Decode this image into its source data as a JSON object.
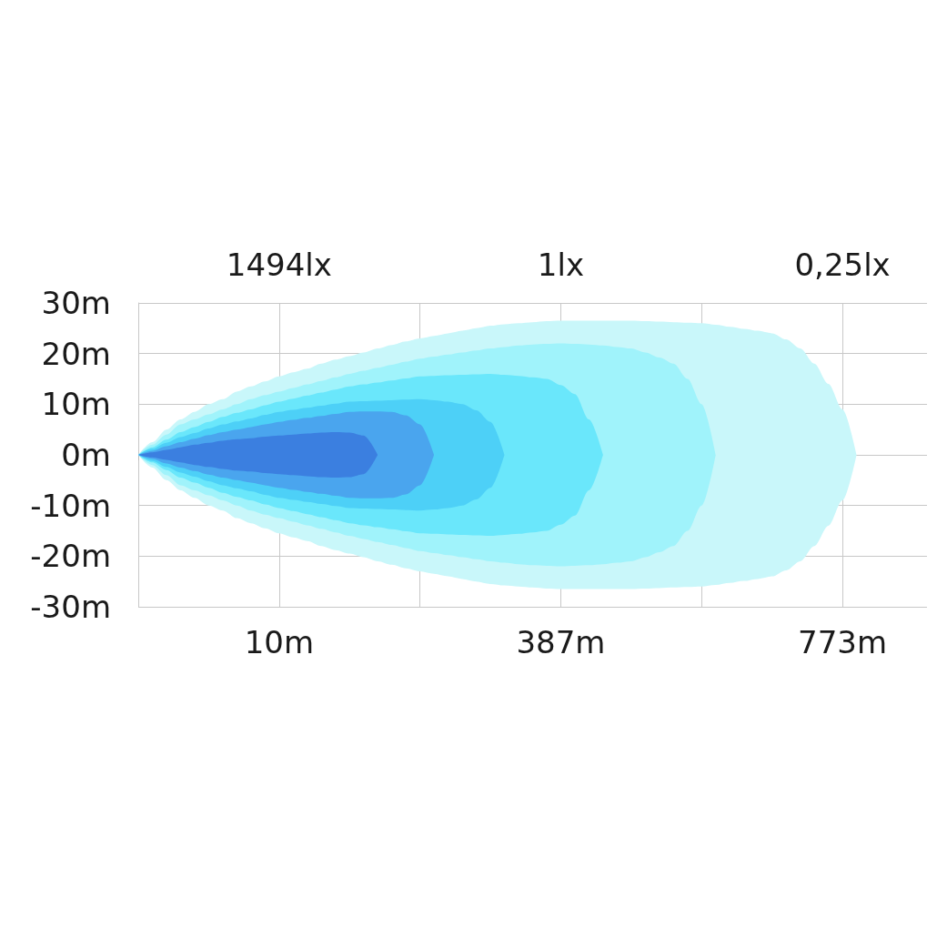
{
  "chart_data": {
    "type": "area",
    "grid": true,
    "categories": [
      null,
      null,
      null,
      null,
      null,
      null,
      null,
      null,
      null,
      null,
      "10m",
      null,
      null,
      null,
      null,
      null,
      null,
      null,
      null,
      null,
      null,
      null,
      null,
      null,
      null,
      null,
      null,
      null,
      null,
      null,
      "387m",
      null,
      null,
      null,
      null,
      null,
      null,
      null,
      null,
      null,
      null,
      null,
      null,
      null,
      null,
      null,
      null,
      null,
      null,
      null,
      "773m",
      null,
      null,
      null,
      null,
      null,
      null
    ],
    "ylim": [
      -30,
      30
    ],
    "yticks": [
      {
        "value": 30,
        "label": "30m"
      },
      {
        "value": 20,
        "label": "20m"
      },
      {
        "value": 10,
        "label": "10m"
      },
      {
        "value": 0,
        "label": "0m"
      },
      {
        "value": -10,
        "label": "-10m"
      },
      {
        "value": -20,
        "label": "-20m"
      },
      {
        "value": -30,
        "label": "-30m"
      }
    ],
    "annotations": [
      "1494lx",
      "1lx",
      "0,25lx"
    ],
    "series": [
      {
        "color": "#c9f7fa",
        "values": [
          0,
          2.5,
          5,
          7,
          8.5,
          10,
          11,
          12.5,
          13.5,
          14.5,
          15.5,
          16.3,
          17,
          18,
          18.8,
          19.5,
          20.2,
          21,
          21.7,
          22.4,
          23,
          23.5,
          24,
          24.5,
          25,
          25.5,
          25.8,
          26,
          26.2,
          26.4,
          26.5,
          26.5,
          26.5,
          26.5,
          26.5,
          26.5,
          26.4,
          26.3,
          26.2,
          26.1,
          26,
          25.7,
          25.3,
          24.9,
          24.5,
          24,
          22.8,
          21,
          18,
          14,
          9,
          0,
          null,
          null,
          null,
          null,
          null
        ]
      },
      {
        "color": "#c9f7fa",
        "values": [
          0,
          -2.5,
          -5,
          -7,
          -8.5,
          -10,
          -11,
          -12.5,
          -13.5,
          -14.5,
          -15.5,
          -16.3,
          -17,
          -18,
          -18.8,
          -19.5,
          -20.2,
          -21,
          -21.7,
          -22.4,
          -23,
          -23.5,
          -24,
          -24.5,
          -25,
          -25.5,
          -25.8,
          -26,
          -26.2,
          -26.4,
          -26.5,
          -26.5,
          -26.5,
          -26.5,
          -26.5,
          -26.5,
          -26.4,
          -26.3,
          -26.2,
          -26.1,
          -26,
          -25.7,
          -25.3,
          -24.9,
          -24.5,
          -24,
          -22.8,
          -21,
          -18,
          -14,
          -9,
          0,
          null,
          null,
          null,
          null,
          null
        ]
      },
      {
        "color": "#a0f3fb",
        "values": [
          0,
          2,
          4,
          6,
          7,
          8,
          9,
          10,
          11,
          11.8,
          12.5,
          13.2,
          13.9,
          14.6,
          15.3,
          16,
          16.6,
          17.2,
          17.8,
          18.4,
          19,
          19.4,
          19.8,
          20.2,
          20.6,
          21,
          21.3,
          21.6,
          21.8,
          21.9,
          22,
          21.9,
          21.8,
          21.6,
          21.3,
          21,
          20.2,
          19.2,
          18,
          15,
          10,
          0,
          null,
          null,
          null,
          null,
          null,
          null,
          null,
          null,
          null,
          null,
          null,
          null,
          null,
          null,
          null
        ]
      },
      {
        "color": "#a0f3fb",
        "values": [
          0,
          -2,
          -4,
          -6,
          -7,
          -8,
          -9,
          -10,
          -11,
          -11.8,
          -12.5,
          -13.2,
          -13.9,
          -14.6,
          -15.3,
          -16,
          -16.6,
          -17.2,
          -17.8,
          -18.4,
          -19,
          -19.4,
          -19.8,
          -20.2,
          -20.6,
          -21,
          -21.3,
          -21.6,
          -21.8,
          -21.9,
          -22,
          -21.9,
          -21.8,
          -21.6,
          -21.3,
          -21,
          -20.2,
          -19.2,
          -18,
          -15,
          -10,
          0,
          null,
          null,
          null,
          null,
          null,
          null,
          null,
          null,
          null,
          null,
          null,
          null,
          null,
          null,
          null
        ]
      },
      {
        "color": "#6ae7fb",
        "values": [
          0,
          1.5,
          3,
          4.5,
          5.5,
          6.5,
          7.5,
          8.3,
          9,
          9.8,
          10.5,
          11.1,
          11.7,
          12.3,
          12.9,
          13.5,
          13.9,
          14.3,
          14.7,
          15.1,
          15.5,
          15.6,
          15.7,
          15.8,
          15.9,
          16,
          15.8,
          15.6,
          15.3,
          15,
          13.8,
          12,
          7,
          0,
          null,
          null,
          null,
          null,
          null,
          null,
          null,
          null,
          null,
          null,
          null,
          null,
          null,
          null,
          null,
          null,
          null,
          null,
          null,
          null,
          null,
          null,
          null
        ]
      },
      {
        "color": "#6ae7fb",
        "values": [
          0,
          -1.5,
          -3,
          -4.5,
          -5.5,
          -6.5,
          -7.5,
          -8.3,
          -9,
          -9.8,
          -10.5,
          -11.1,
          -11.7,
          -12.3,
          -12.9,
          -13.5,
          -13.9,
          -14.3,
          -14.7,
          -15.1,
          -15.5,
          -15.6,
          -15.7,
          -15.8,
          -15.9,
          -16,
          -15.8,
          -15.6,
          -15.3,
          -15,
          -13.8,
          -12,
          -7,
          0,
          null,
          null,
          null,
          null,
          null,
          null,
          null,
          null,
          null,
          null,
          null,
          null,
          null,
          null,
          null,
          null,
          null,
          null,
          null,
          null,
          null,
          null,
          null
        ]
      },
      {
        "color": "#4dd0f7",
        "values": [
          0,
          1.2,
          2.4,
          3.5,
          4.3,
          5.2,
          6,
          6.6,
          7.2,
          7.9,
          8.5,
          8.9,
          9.3,
          9.7,
          10.1,
          10.5,
          10.6,
          10.7,
          10.8,
          10.9,
          11,
          10.8,
          10.5,
          10,
          8.8,
          6.5,
          0,
          null,
          null,
          null,
          null,
          null,
          null,
          null,
          null,
          null,
          null,
          null,
          null,
          null,
          null,
          null,
          null,
          null,
          null,
          null,
          null,
          null,
          null,
          null,
          null,
          null,
          null,
          null,
          null,
          null,
          null
        ]
      },
      {
        "color": "#4dd0f7",
        "values": [
          0,
          -1.2,
          -2.4,
          -3.5,
          -4.3,
          -5.2,
          -6,
          -6.6,
          -7.2,
          -7.9,
          -8.5,
          -8.9,
          -9.3,
          -9.7,
          -10.1,
          -10.5,
          -10.6,
          -10.7,
          -10.8,
          -10.9,
          -11,
          -10.8,
          -10.5,
          -10,
          -8.8,
          -6.5,
          0,
          null,
          null,
          null,
          null,
          null,
          null,
          null,
          null,
          null,
          null,
          null,
          null,
          null,
          null,
          null,
          null,
          null,
          null,
          null,
          null,
          null,
          null,
          null,
          null,
          null,
          null,
          null,
          null,
          null,
          null
        ]
      },
      {
        "color": "#4aa5ee",
        "values": [
          0,
          0.8,
          1.7,
          2.5,
          3.2,
          3.9,
          4.5,
          5,
          5.5,
          6,
          6.5,
          6.9,
          7.3,
          7.7,
          8.1,
          8.5,
          8.6,
          8.6,
          8.5,
          7.8,
          6,
          0,
          null,
          null,
          null,
          null,
          null,
          null,
          null,
          null,
          null,
          null,
          null,
          null,
          null,
          null,
          null,
          null,
          null,
          null,
          null,
          null,
          null,
          null,
          null,
          null,
          null,
          null,
          null,
          null,
          null,
          null,
          null,
          null,
          null,
          null,
          null
        ]
      },
      {
        "color": "#4aa5ee",
        "values": [
          0,
          -0.8,
          -1.7,
          -2.5,
          -3.2,
          -3.9,
          -4.5,
          -5,
          -5.5,
          -6,
          -6.5,
          -6.9,
          -7.3,
          -7.7,
          -8.1,
          -8.5,
          -8.6,
          -8.6,
          -8.5,
          -7.8,
          -6,
          0,
          null,
          null,
          null,
          null,
          null,
          null,
          null,
          null,
          null,
          null,
          null,
          null,
          null,
          null,
          null,
          null,
          null,
          null,
          null,
          null,
          null,
          null,
          null,
          null,
          null,
          null,
          null,
          null,
          null,
          null,
          null,
          null,
          null,
          null,
          null
        ]
      },
      {
        "color": "#3b7fe0",
        "values": [
          0,
          0.5,
          1,
          1.5,
          2,
          2.4,
          2.8,
          3.1,
          3.3,
          3.6,
          3.8,
          4,
          4.2,
          4.4,
          4.5,
          4.4,
          3.8,
          0,
          null,
          null,
          null,
          null,
          null,
          null,
          null,
          null,
          null,
          null,
          null,
          null,
          null,
          null,
          null,
          null,
          null,
          null,
          null,
          null,
          null,
          null,
          null,
          null,
          null,
          null,
          null,
          null,
          null,
          null,
          null,
          null,
          null,
          null,
          null,
          null,
          null,
          null,
          null
        ]
      },
      {
        "color": "#3b7fe0",
        "values": [
          0,
          -0.5,
          -1,
          -1.5,
          -2,
          -2.4,
          -2.8,
          -3.1,
          -3.3,
          -3.6,
          -3.8,
          -4,
          -4.2,
          -4.4,
          -4.5,
          -4.4,
          -3.8,
          0,
          null,
          null,
          null,
          null,
          null,
          null,
          null,
          null,
          null,
          null,
          null,
          null,
          null,
          null,
          null,
          null,
          null,
          null,
          null,
          null,
          null,
          null,
          null,
          null,
          null,
          null,
          null,
          null,
          null,
          null,
          null,
          null,
          null,
          null,
          null,
          null,
          null,
          null,
          null
        ]
      }
    ]
  }
}
